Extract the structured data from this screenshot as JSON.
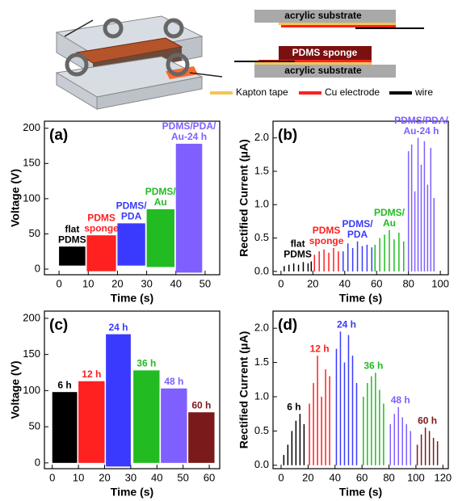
{
  "diagram": {
    "top_substrate": "acrylic substrate",
    "sponge": "PDMS sponge",
    "bottom_substrate": "acrylic substrate",
    "legend": [
      "Kapton tape",
      "Cu electrode",
      "wire"
    ]
  },
  "chart_data": [
    {
      "type": "range",
      "panel": "(a)",
      "xlabel": "Time (s)",
      "ylabel": "Voltage (V)",
      "xlim": [
        -5,
        55
      ],
      "xticks": [
        0,
        10,
        20,
        30,
        40,
        50
      ],
      "ylim": [
        -8,
        210
      ],
      "yticks": [
        0,
        50,
        100,
        150,
        200
      ],
      "series": [
        {
          "label": [
            "flat",
            "PDMS"
          ],
          "color": "#000000",
          "x": [
            0,
            9
          ],
          "low": 5,
          "high": 32
        },
        {
          "label": [
            "PDMS",
            "sponge"
          ],
          "color": "#ff2020",
          "x": [
            9.5,
            19.5
          ],
          "low": -3,
          "high": 48
        },
        {
          "label": [
            "PDMS/",
            "PDA"
          ],
          "color": "#3a3aff",
          "x": [
            20,
            29.5
          ],
          "low": 5,
          "high": 65
        },
        {
          "label": [
            "PDMS/",
            "Au"
          ],
          "color": "#22bb22",
          "x": [
            30,
            39.5
          ],
          "low": 3,
          "high": 85
        },
        {
          "label": [
            "PDMS/PDA/",
            "Au-24 h"
          ],
          "color": "#7f5fff",
          "x": [
            40,
            49
          ],
          "low": -5,
          "high": 178
        }
      ]
    },
    {
      "type": "spikes",
      "panel": "(b)",
      "xlabel": "Time (s)",
      "ylabel": "Rectified Current (μA)",
      "xlim": [
        -5,
        105
      ],
      "xticks": [
        0,
        20,
        40,
        60,
        80,
        100
      ],
      "ylim": [
        -0.05,
        2.25
      ],
      "yticks": [
        {
          "value": 0,
          "label": "0.0"
        },
        {
          "value": 0.5,
          "label": "0.5"
        },
        {
          "value": 1,
          "label": "1.0"
        },
        {
          "value": 1.5,
          "label": "1.5"
        },
        {
          "value": 2,
          "label": "2.0"
        }
      ],
      "series": [
        {
          "label": [
            "flat",
            "PDMS"
          ],
          "color": "#000000",
          "x": [
            2,
            5,
            8,
            11,
            14,
            17,
            19
          ],
          "values": [
            0.08,
            0.1,
            0.12,
            0.1,
            0.14,
            0.12,
            0.15
          ]
        },
        {
          "label": [
            "PDMS",
            "sponge"
          ],
          "color": "#ff2020",
          "x": [
            21,
            24,
            27,
            30,
            33,
            36
          ],
          "values": [
            0.25,
            0.3,
            0.33,
            0.28,
            0.35,
            0.3
          ]
        },
        {
          "label": [
            "PDMS/",
            "PDA"
          ],
          "color": "#3a3aff",
          "x": [
            39,
            42,
            45,
            48,
            51,
            54,
            57
          ],
          "values": [
            0.3,
            0.42,
            0.35,
            0.45,
            0.38,
            0.4,
            0.36
          ]
        },
        {
          "label": [
            "PDMS/",
            "Au"
          ],
          "color": "#22bb22",
          "x": [
            59,
            62,
            65,
            68,
            71,
            74,
            77
          ],
          "values": [
            0.4,
            0.5,
            0.55,
            0.62,
            0.48,
            0.58,
            0.45
          ]
        },
        {
          "label": [
            "PDMS/PDA/",
            "Au-24 h"
          ],
          "color": "#7f5fff",
          "x": [
            80,
            82,
            84,
            86,
            88,
            90,
            92,
            94,
            96
          ],
          "values": [
            1.8,
            1.9,
            1.2,
            2.0,
            1.6,
            1.95,
            1.3,
            1.85,
            1.1
          ]
        }
      ]
    },
    {
      "type": "range",
      "panel": "(c)",
      "xlabel": "Time (s)",
      "ylabel": "Voltage (V)",
      "xlim": [
        -3,
        64
      ],
      "xticks": [
        0,
        10,
        20,
        30,
        40,
        50,
        60
      ],
      "ylim": [
        -8,
        210
      ],
      "yticks": [
        0,
        50,
        100,
        150,
        200
      ],
      "series": [
        {
          "label": [
            "6 h"
          ],
          "color": "#000000",
          "x": [
            0,
            9.5
          ],
          "low": 0,
          "high": 98
        },
        {
          "label": [
            "12 h"
          ],
          "color": "#ff2020",
          "x": [
            10,
            20
          ],
          "low": 0,
          "high": 113
        },
        {
          "label": [
            "24 h"
          ],
          "color": "#3a3aff",
          "x": [
            20.5,
            30
          ],
          "low": -5,
          "high": 178
        },
        {
          "label": [
            "36 h"
          ],
          "color": "#22bb22",
          "x": [
            31,
            41
          ],
          "low": 0,
          "high": 128
        },
        {
          "label": [
            "48 h"
          ],
          "color": "#7f5fff",
          "x": [
            41.5,
            51.5
          ],
          "low": 0,
          "high": 103
        },
        {
          "label": [
            "60 h"
          ],
          "color": "#7b1a1a",
          "x": [
            52,
            62
          ],
          "low": 0,
          "high": 70
        }
      ]
    },
    {
      "type": "spikes",
      "panel": "(d)",
      "xlabel": "Time (s)",
      "ylabel": "Rectified Current (μA)",
      "xlim": [
        -6,
        124
      ],
      "xticks": [
        0,
        20,
        40,
        60,
        80,
        100,
        120
      ],
      "ylim": [
        -0.05,
        2.25
      ],
      "yticks": [
        {
          "value": 0,
          "label": "0.0"
        },
        {
          "value": 0.5,
          "label": "0.5"
        },
        {
          "value": 1,
          "label": "1.0"
        },
        {
          "value": 1.5,
          "label": "1.5"
        },
        {
          "value": 2,
          "label": "2.0"
        }
      ],
      "series": [
        {
          "label": [
            "6 h"
          ],
          "color": "#000000",
          "x": [
            2,
            5,
            8,
            11,
            14,
            17
          ],
          "values": [
            0.15,
            0.3,
            0.5,
            0.65,
            0.75,
            0.6
          ]
        },
        {
          "label": [
            "12 h"
          ],
          "color": "#ff2020",
          "x": [
            21,
            24,
            27,
            30,
            33,
            36
          ],
          "values": [
            0.9,
            1.2,
            1.6,
            1.0,
            1.4,
            1.3
          ]
        },
        {
          "label": [
            "24 h"
          ],
          "color": "#3a3aff",
          "x": [
            41,
            44,
            47,
            50,
            53,
            56
          ],
          "values": [
            1.7,
            1.95,
            1.5,
            1.9,
            1.6,
            1.2
          ]
        },
        {
          "label": [
            "36 h"
          ],
          "color": "#22bb22",
          "x": [
            61,
            64,
            67,
            70,
            73,
            76
          ],
          "values": [
            1.0,
            1.2,
            1.3,
            1.35,
            1.1,
            0.9
          ]
        },
        {
          "label": [
            "48 h"
          ],
          "color": "#7f5fff",
          "x": [
            81,
            84,
            87,
            90,
            93,
            96
          ],
          "values": [
            0.6,
            0.75,
            0.85,
            0.7,
            0.6,
            0.5
          ]
        },
        {
          "label": [
            "60 h"
          ],
          "color": "#7b1a1a",
          "x": [
            101,
            104,
            107,
            110,
            113,
            116
          ],
          "values": [
            0.3,
            0.45,
            0.55,
            0.5,
            0.4,
            0.35
          ]
        }
      ]
    }
  ]
}
